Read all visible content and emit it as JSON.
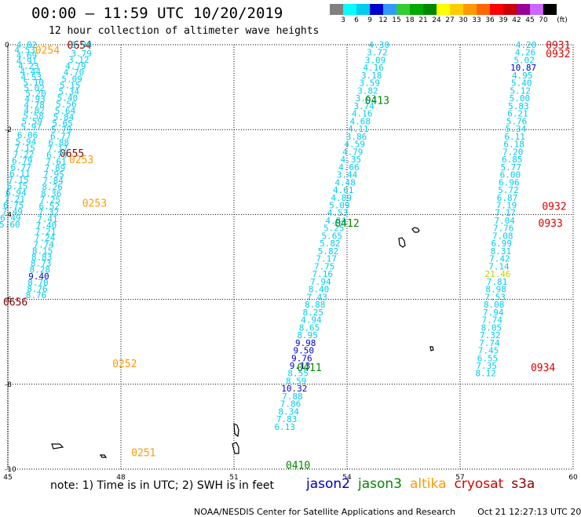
{
  "header": {
    "title": "00:00 – 11:59 UTC 10/20/2019",
    "subtitle": "12 hour collection of altimeter wave heights"
  },
  "color_scale": {
    "labels": [
      "3",
      "6",
      "9",
      "12",
      "15",
      "18",
      "21",
      "24",
      "27",
      "30",
      "33",
      "36",
      "39",
      "42",
      "45",
      "70"
    ],
    "unit": "(ft)",
    "colors": [
      "#808080",
      "#00ffff",
      "#00ccee",
      "#0000cc",
      "#3399ff",
      "#33cc33",
      "#00aa00",
      "#008800",
      "#ffff00",
      "#ffcc00",
      "#ff9900",
      "#ff6600",
      "#ff0000",
      "#cc0000",
      "#990099",
      "#cc66ff",
      "#000000"
    ]
  },
  "axes": {
    "lon_ticks": [
      "45",
      "48",
      "51",
      "54",
      "57",
      "60"
    ],
    "lat_ticks": [
      "0",
      "-2",
      "-4",
      "-6",
      "-8",
      "-10"
    ]
  },
  "sat_colors": {
    "jason2": "#0000cc",
    "jason3": "#008800",
    "altika": "#ff9900",
    "cryosat": "#dd0000",
    "s3a": "#880000",
    "swh": "#00ccee"
  },
  "swh_colors": {
    "3-6": "#00ccee",
    "6-9": "#00ccee",
    "9-12": "#0000cc",
    "15-18": "#cccc00"
  },
  "tracks": [
    {
      "sat": "s3a",
      "labels": [
        {
          "text": "0654",
          "lon": 46.9,
          "lat": 0.0
        },
        {
          "text": "0655",
          "lon": 46.7,
          "lat": -2.55
        },
        {
          "text": "0656",
          "lon": 45.2,
          "lat": -6.05
        }
      ],
      "points": [
        {
          "v": "4.82",
          "lon": 45.5,
          "lat": 0.0
        },
        {
          "v": "4.53",
          "lon": 45.45,
          "lat": -0.12
        },
        {
          "v": "4.69",
          "lon": 45.5,
          "lat": -0.25
        },
        {
          "v": "4.91",
          "lon": 45.5,
          "lat": -0.38
        },
        {
          "v": "4.23",
          "lon": 45.55,
          "lat": -0.5
        },
        {
          "v": "4.44",
          "lon": 45.6,
          "lat": -0.63
        },
        {
          "v": "4.53",
          "lon": 45.62,
          "lat": -0.76
        },
        {
          "v": "5.10",
          "lon": 45.68,
          "lat": -0.89
        },
        {
          "v": "5.02",
          "lon": 45.7,
          "lat": -1.02
        },
        {
          "v": "5.20",
          "lon": 45.74,
          "lat": -1.15
        },
        {
          "v": "4.93",
          "lon": 45.72,
          "lat": -1.28
        },
        {
          "v": "4.78",
          "lon": 45.7,
          "lat": -1.41
        },
        {
          "v": "4.82",
          "lon": 45.7,
          "lat": -1.54
        },
        {
          "v": "5.58",
          "lon": 45.68,
          "lat": -1.67
        },
        {
          "v": "5.59",
          "lon": 45.64,
          "lat": -1.8
        },
        {
          "v": "5.97",
          "lon": 45.62,
          "lat": -1.93
        },
        {
          "v": "6.06",
          "lon": 45.52,
          "lat": -2.13
        },
        {
          "v": "5.94",
          "lon": 45.48,
          "lat": -2.28
        },
        {
          "v": "7.15",
          "lon": 45.45,
          "lat": -2.43
        },
        {
          "v": "7.22",
          "lon": 45.42,
          "lat": -2.58
        },
        {
          "v": "6.79",
          "lon": 45.38,
          "lat": -2.73
        },
        {
          "v": "6.77",
          "lon": 45.35,
          "lat": -2.88
        },
        {
          "v": "6.11",
          "lon": 45.32,
          "lat": -3.03
        },
        {
          "v": "7.15",
          "lon": 45.28,
          "lat": -3.18
        },
        {
          "v": "6.15",
          "lon": 45.25,
          "lat": -3.33
        },
        {
          "v": "6.94",
          "lon": 45.22,
          "lat": -3.48
        },
        {
          "v": "7.21",
          "lon": 45.18,
          "lat": -3.63
        },
        {
          "v": "6.75",
          "lon": 45.15,
          "lat": -3.78
        },
        {
          "v": "7.49",
          "lon": 45.12,
          "lat": -3.93
        },
        {
          "v": "6.49",
          "lon": 45.07,
          "lat": -4.08
        },
        {
          "v": "5.60",
          "lon": 45.05,
          "lat": -4.23
        }
      ]
    },
    {
      "sat": "altika",
      "labels": [
        {
          "text": "0254",
          "lon": 46.05,
          "lat": -0.12
        },
        {
          "text": "0253",
          "lon": 46.95,
          "lat": -2.7
        },
        {
          "text": "0253",
          "lon": 47.3,
          "lat": -3.72
        },
        {
          "text": "0252",
          "lon": 48.1,
          "lat": -7.5
        },
        {
          "text": "0251",
          "lon": 48.6,
          "lat": -9.6
        }
      ],
      "points": [
        {
          "v": "3.39",
          "lon": 46.95,
          "lat": 0.0
        },
        {
          "v": "3.79",
          "lon": 46.95,
          "lat": -0.2
        },
        {
          "v": "3.12",
          "lon": 46.88,
          "lat": -0.35
        },
        {
          "v": "4.79",
          "lon": 46.8,
          "lat": -0.5
        },
        {
          "v": "4.70",
          "lon": 46.75,
          "lat": -0.65
        },
        {
          "v": "5.09",
          "lon": 46.7,
          "lat": -0.8
        },
        {
          "v": "5.15",
          "lon": 46.65,
          "lat": -0.95
        },
        {
          "v": "5.34",
          "lon": 46.62,
          "lat": -1.1
        },
        {
          "v": "5.40",
          "lon": 46.58,
          "lat": -1.25
        },
        {
          "v": "5.56",
          "lon": 46.55,
          "lat": -1.4
        },
        {
          "v": "5.64",
          "lon": 46.52,
          "lat": -1.55
        },
        {
          "v": "5.84",
          "lon": 46.48,
          "lat": -1.7
        },
        {
          "v": "5.65",
          "lon": 46.45,
          "lat": -1.85
        },
        {
          "v": "5.79",
          "lon": 46.42,
          "lat": -2.0
        },
        {
          "v": "6.77",
          "lon": 46.4,
          "lat": -2.15
        },
        {
          "v": "6.88",
          "lon": 46.35,
          "lat": -2.3
        },
        {
          "v": "7.17",
          "lon": 46.32,
          "lat": -2.45
        },
        {
          "v": "6.79",
          "lon": 46.3,
          "lat": -2.6
        },
        {
          "v": "7.61",
          "lon": 46.28,
          "lat": -2.75
        },
        {
          "v": "7.89",
          "lon": 46.25,
          "lat": -2.9
        },
        {
          "v": "7.95",
          "lon": 46.22,
          "lat": -3.05
        },
        {
          "v": "7.84",
          "lon": 46.2,
          "lat": -3.2
        },
        {
          "v": "8.26",
          "lon": 46.18,
          "lat": -3.35
        },
        {
          "v": "8.36",
          "lon": 46.15,
          "lat": -3.5
        },
        {
          "v": "7.25",
          "lon": 46.12,
          "lat": -3.65
        },
        {
          "v": "6.52",
          "lon": 46.1,
          "lat": -3.8
        },
        {
          "v": "7.32",
          "lon": 46.08,
          "lat": -3.95
        },
        {
          "v": "7.41",
          "lon": 46.05,
          "lat": -4.1
        },
        {
          "v": "7.40",
          "lon": 46.02,
          "lat": -4.25
        },
        {
          "v": "7.21",
          "lon": 46.0,
          "lat": -4.4
        },
        {
          "v": "7.24",
          "lon": 45.98,
          "lat": -4.55
        },
        {
          "v": "7.74",
          "lon": 45.95,
          "lat": -4.7
        },
        {
          "v": "8.15",
          "lon": 45.92,
          "lat": -4.85
        },
        {
          "v": "8.83",
          "lon": 45.9,
          "lat": -5.0
        },
        {
          "v": "8.73",
          "lon": 45.88,
          "lat": -5.15
        },
        {
          "v": "8.28",
          "lon": 45.85,
          "lat": -5.3
        },
        {
          "v": "9.40",
          "lon": 45.82,
          "lat": -5.45
        },
        {
          "v": "8.70",
          "lon": 45.8,
          "lat": -5.6
        },
        {
          "v": "8.76",
          "lon": 45.78,
          "lat": -5.75
        },
        {
          "v": "8.76",
          "lon": 45.75,
          "lat": -5.9
        }
      ]
    },
    {
      "sat": "jason3",
      "labels": [
        {
          "text": "0413",
          "lon": 54.8,
          "lat": -1.3
        },
        {
          "text": "0412",
          "lon": 54.0,
          "lat": -4.2
        },
        {
          "text": "0411",
          "lon": 53.0,
          "lat": -7.6
        },
        {
          "text": "0410",
          "lon": 52.7,
          "lat": -9.9
        }
      ],
      "points": [
        {
          "v": "4.30",
          "lon": 54.85,
          "lat": 0.0
        },
        {
          "v": "3.72",
          "lon": 54.8,
          "lat": -0.18
        },
        {
          "v": "3.09",
          "lon": 54.75,
          "lat": -0.36
        },
        {
          "v": "4.16",
          "lon": 54.7,
          "lat": -0.54
        },
        {
          "v": "3.18",
          "lon": 54.65,
          "lat": -0.72
        },
        {
          "v": "3.59",
          "lon": 54.6,
          "lat": -0.9
        },
        {
          "v": "3.82",
          "lon": 54.55,
          "lat": -1.08
        },
        {
          "v": "3.63",
          "lon": 54.5,
          "lat": -1.26
        },
        {
          "v": "3.74",
          "lon": 54.45,
          "lat": -1.44
        },
        {
          "v": "4.16",
          "lon": 54.4,
          "lat": -1.62
        },
        {
          "v": "4.68",
          "lon": 54.35,
          "lat": -1.8
        },
        {
          "v": "4.11",
          "lon": 54.3,
          "lat": -1.98
        },
        {
          "v": "3.86",
          "lon": 54.25,
          "lat": -2.16
        },
        {
          "v": "4.59",
          "lon": 54.2,
          "lat": -2.34
        },
        {
          "v": "4.79",
          "lon": 54.15,
          "lat": -2.52
        },
        {
          "v": "4.35",
          "lon": 54.1,
          "lat": -2.7
        },
        {
          "v": "4.66",
          "lon": 54.05,
          "lat": -2.88
        },
        {
          "v": "3.44",
          "lon": 54.0,
          "lat": -3.06
        },
        {
          "v": "4.48",
          "lon": 53.95,
          "lat": -3.24
        },
        {
          "v": "4.61",
          "lon": 53.9,
          "lat": -3.42
        },
        {
          "v": "4.89",
          "lon": 53.85,
          "lat": -3.6
        },
        {
          "v": "5.09",
          "lon": 53.8,
          "lat": -3.78
        },
        {
          "v": "4.53",
          "lon": 53.75,
          "lat": -3.96
        },
        {
          "v": "4.84",
          "lon": 53.7,
          "lat": -4.14
        },
        {
          "v": "5.25",
          "lon": 53.65,
          "lat": -4.32
        },
        {
          "v": "5.65",
          "lon": 53.6,
          "lat": -4.5
        },
        {
          "v": "5.82",
          "lon": 53.55,
          "lat": -4.68
        },
        {
          "v": "5.82",
          "lon": 53.5,
          "lat": -4.86
        },
        {
          "v": "7.17",
          "lon": 53.45,
          "lat": -5.04
        },
        {
          "v": "7.75",
          "lon": 53.4,
          "lat": -5.22
        },
        {
          "v": "7.16",
          "lon": 53.35,
          "lat": -5.4
        },
        {
          "v": "7.94",
          "lon": 53.3,
          "lat": -5.58
        },
        {
          "v": "8.40",
          "lon": 53.25,
          "lat": -5.76
        },
        {
          "v": "7.43",
          "lon": 53.2,
          "lat": -5.94
        },
        {
          "v": "8.88",
          "lon": 53.15,
          "lat": -6.12
        },
        {
          "v": "8.25",
          "lon": 53.1,
          "lat": -6.3
        },
        {
          "v": "4.94",
          "lon": 53.05,
          "lat": -6.48
        },
        {
          "v": "8.65",
          "lon": 53.0,
          "lat": -6.66
        },
        {
          "v": "8.95",
          "lon": 52.95,
          "lat": -6.84
        },
        {
          "v": "9.98",
          "lon": 52.9,
          "lat": -7.02
        },
        {
          "v": "9.50",
          "lon": 52.85,
          "lat": -7.2
        },
        {
          "v": "9.76",
          "lon": 52.8,
          "lat": -7.38
        },
        {
          "v": "9.13",
          "lon": 52.75,
          "lat": -7.56
        },
        {
          "v": "8.55",
          "lon": 52.7,
          "lat": -7.74
        },
        {
          "v": "8.59",
          "lon": 52.65,
          "lat": -7.92
        },
        {
          "v": "10.32",
          "lon": 52.6,
          "lat": -8.1
        },
        {
          "v": "7.88",
          "lon": 52.55,
          "lat": -8.28
        },
        {
          "v": "7.86",
          "lon": 52.5,
          "lat": -8.46
        },
        {
          "v": "8.34",
          "lon": 52.45,
          "lat": -8.64
        },
        {
          "v": "7.83",
          "lon": 52.4,
          "lat": -8.82
        },
        {
          "v": "6.13",
          "lon": 52.35,
          "lat": -9.0
        }
      ]
    },
    {
      "sat": "cryosat",
      "labels": [
        {
          "text": "0931",
          "lon": 59.6,
          "lat": 0.0
        },
        {
          "text": "0932",
          "lon": 59.6,
          "lat": -0.2
        },
        {
          "text": "0932",
          "lon": 59.5,
          "lat": -3.8
        },
        {
          "text": "0933",
          "lon": 59.4,
          "lat": -4.2
        },
        {
          "text": "0934",
          "lon": 59.2,
          "lat": -7.6
        }
      ],
      "points": [
        {
          "v": "4.20",
          "lon": 58.75,
          "lat": 0.0
        },
        {
          "v": "4.26",
          "lon": 58.73,
          "lat": -0.18
        },
        {
          "v": "5.02",
          "lon": 58.7,
          "lat": -0.36
        },
        {
          "v": "10.87",
          "lon": 58.68,
          "lat": -0.54
        },
        {
          "v": "4.95",
          "lon": 58.65,
          "lat": -0.72
        },
        {
          "v": "5.40",
          "lon": 58.63,
          "lat": -0.9
        },
        {
          "v": "5.12",
          "lon": 58.6,
          "lat": -1.08
        },
        {
          "v": "5.00",
          "lon": 58.58,
          "lat": -1.26
        },
        {
          "v": "5.83",
          "lon": 58.55,
          "lat": -1.44
        },
        {
          "v": "6.21",
          "lon": 58.53,
          "lat": -1.62
        },
        {
          "v": "5.76",
          "lon": 58.5,
          "lat": -1.8
        },
        {
          "v": "5.34",
          "lon": 58.48,
          "lat": -1.98
        },
        {
          "v": "6.11",
          "lon": 58.45,
          "lat": -2.16
        },
        {
          "v": "6.18",
          "lon": 58.43,
          "lat": -2.34
        },
        {
          "v": "7.20",
          "lon": 58.4,
          "lat": -2.52
        },
        {
          "v": "6.85",
          "lon": 58.38,
          "lat": -2.7
        },
        {
          "v": "5.77",
          "lon": 58.35,
          "lat": -2.88
        },
        {
          "v": "6.00",
          "lon": 58.33,
          "lat": -3.06
        },
        {
          "v": "6.96",
          "lon": 58.3,
          "lat": -3.24
        },
        {
          "v": "5.72",
          "lon": 58.28,
          "lat": -3.42
        },
        {
          "v": "6.87",
          "lon": 58.25,
          "lat": -3.6
        },
        {
          "v": "7.19",
          "lon": 58.23,
          "lat": -3.78
        },
        {
          "v": "7.17",
          "lon": 58.2,
          "lat": -3.96
        },
        {
          "v": "7.04",
          "lon": 58.18,
          "lat": -4.14
        },
        {
          "v": "7.76",
          "lon": 58.15,
          "lat": -4.32
        },
        {
          "v": "7.08",
          "lon": 58.13,
          "lat": -4.5
        },
        {
          "v": "6.99",
          "lon": 58.1,
          "lat": -4.68
        },
        {
          "v": "8.31",
          "lon": 58.08,
          "lat": -4.86
        },
        {
          "v": "7.42",
          "lon": 58.05,
          "lat": -5.04
        },
        {
          "v": "7.14",
          "lon": 58.03,
          "lat": -5.22
        },
        {
          "v": "21.46",
          "lon": 58.0,
          "lat": -5.4
        },
        {
          "v": "7.81",
          "lon": 57.98,
          "lat": -5.58
        },
        {
          "v": "8.98",
          "lon": 57.95,
          "lat": -5.76
        },
        {
          "v": "7.53",
          "lon": 57.93,
          "lat": -5.94
        },
        {
          "v": "8.08",
          "lon": 57.9,
          "lat": -6.12
        },
        {
          "v": "7.94",
          "lon": 57.88,
          "lat": -6.3
        },
        {
          "v": "7.74",
          "lon": 57.85,
          "lat": -6.48
        },
        {
          "v": "8.05",
          "lon": 57.83,
          "lat": -6.66
        },
        {
          "v": "7.32",
          "lon": 57.8,
          "lat": -6.84
        },
        {
          "v": "7.74",
          "lon": 57.78,
          "lat": -7.02
        },
        {
          "v": "7.45",
          "lon": 57.75,
          "lat": -7.2
        },
        {
          "v": "6.55",
          "lon": 57.73,
          "lat": -7.38
        },
        {
          "v": "7.35",
          "lon": 57.7,
          "lat": -7.56
        },
        {
          "v": "8.12",
          "lon": 57.68,
          "lat": -7.74
        }
      ]
    }
  ],
  "footer": {
    "note": "note: 1) Time is in UTC; 2) SWH is in feet",
    "legend": [
      {
        "label": "jason2",
        "color": "#0000cc"
      },
      {
        "label": "jason3",
        "color": "#008800"
      },
      {
        "label": "altika",
        "color": "#ff9900"
      },
      {
        "label": "cryosat",
        "color": "#dd0000"
      },
      {
        "label": "s3a",
        "color": "#880000"
      }
    ],
    "credit": "NOAA/NESDIS Center for Satellite Applications and Research",
    "timestamp": "Oct 21 12:27:13 UTC 2019"
  }
}
